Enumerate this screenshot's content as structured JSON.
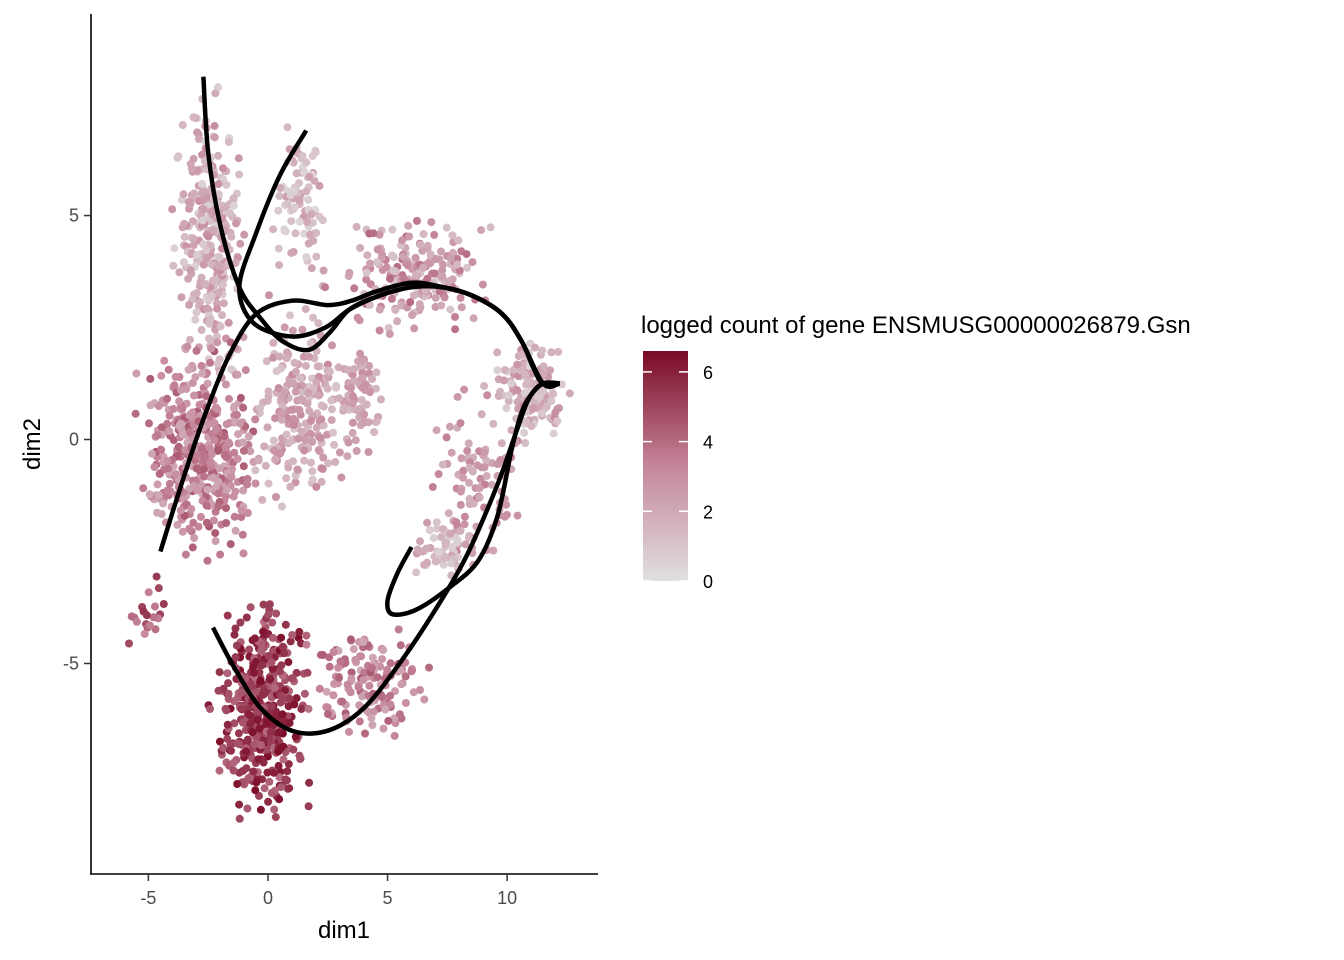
{
  "chart_data": {
    "type": "scatter",
    "title": "",
    "xlabel": "dim1",
    "ylabel": "dim2",
    "xlim": [
      -7.4,
      13.8
    ],
    "ylim": [
      -9.7,
      9.5
    ],
    "x_ticks": [
      -5,
      0,
      5,
      10
    ],
    "y_ticks": [
      -5,
      0,
      5
    ],
    "x_tick_labels": [
      "-5",
      "0",
      "5",
      "10"
    ],
    "y_tick_labels": [
      "-5",
      "0",
      "5"
    ],
    "grid": false,
    "color_scale": {
      "title": "logged count of gene ENSMUSG00000026879.Gsn",
      "min": 0,
      "max": 6.6,
      "ticks": [
        0,
        2,
        4,
        6
      ],
      "tick_labels": [
        "0",
        "2",
        "4",
        "6"
      ],
      "low_color": "#e0e0e0",
      "mid_color": "#c5869a",
      "high_color": "#7a0a26",
      "placement": "right"
    },
    "point_regions": [
      {
        "name": "upper-left arm",
        "x": [
          -4.2,
          -0.6
        ],
        "y": [
          0.5,
          8.5
        ],
        "value_range": [
          0.5,
          3.0
        ],
        "density": 900
      },
      {
        "name": "upper small arm",
        "x": [
          -0.5,
          2.8
        ],
        "y": [
          3.0,
          7.5
        ],
        "value_range": [
          0.3,
          2.5
        ],
        "density": 260
      },
      {
        "name": "left body",
        "x": [
          -6.0,
          0.2
        ],
        "y": [
          -3.0,
          2.5
        ],
        "value_range": [
          2.0,
          4.5
        ],
        "density": 1300
      },
      {
        "name": "center upper",
        "x": [
          -1.2,
          4.0
        ],
        "y": [
          -2.0,
          3.5
        ],
        "value_range": [
          1.0,
          3.2
        ],
        "density": 650
      },
      {
        "name": "branch upper right",
        "x": [
          2.0,
          10.0
        ],
        "y": [
          2.0,
          5.3
        ],
        "value_range": [
          1.0,
          4.0
        ],
        "density": 600
      },
      {
        "name": "middle finger",
        "x": [
          2.5,
          5.0
        ],
        "y": [
          -1.0,
          3.0
        ],
        "value_range": [
          1.5,
          3.0
        ],
        "density": 200
      },
      {
        "name": "right lobe",
        "x": [
          9.0,
          13.0
        ],
        "y": [
          -0.5,
          2.7
        ],
        "value_range": [
          0.5,
          3.0
        ],
        "density": 420
      },
      {
        "name": "right side branch",
        "x": [
          6.5,
          11.0
        ],
        "y": [
          -3.5,
          1.5
        ],
        "value_range": [
          1.5,
          3.5
        ],
        "density": 300
      },
      {
        "name": "right lower tail",
        "x": [
          5.5,
          9.0
        ],
        "y": [
          -3.4,
          -1.5
        ],
        "value_range": [
          0.3,
          2.5
        ],
        "density": 160
      },
      {
        "name": "lower triangle",
        "x": [
          -2.6,
          2.0
        ],
        "y": [
          -8.9,
          -3.0
        ],
        "value_range": [
          4.0,
          6.5
        ],
        "density": 1300
      },
      {
        "name": "lower connector",
        "x": [
          1.0,
          7.5
        ],
        "y": [
          -7.2,
          -3.5
        ],
        "value_range": [
          2.0,
          4.5
        ],
        "density": 420
      },
      {
        "name": "outliers",
        "x": [
          -6.3,
          -3.8
        ],
        "y": [
          -5.3,
          -2.5
        ],
        "value_range": [
          3.0,
          5.5
        ],
        "density": 60
      }
    ],
    "trajectories": [
      {
        "points": [
          [
            -2.7,
            8.1
          ],
          [
            -2.5,
            6.4
          ],
          [
            -2.0,
            4.8
          ],
          [
            -1.2,
            3.4
          ],
          [
            -0.3,
            2.7
          ],
          [
            0.6,
            2.2
          ],
          [
            1.7,
            2.0
          ],
          [
            2.6,
            2.4
          ],
          [
            3.4,
            2.9
          ],
          [
            4.6,
            3.2
          ],
          [
            6.0,
            3.4
          ],
          [
            7.3,
            3.4
          ],
          [
            8.6,
            3.2
          ],
          [
            9.8,
            2.8
          ],
          [
            10.6,
            2.2
          ],
          [
            11.1,
            1.6
          ],
          [
            11.5,
            1.25
          ],
          [
            12.2,
            1.25
          ]
        ]
      },
      {
        "points": [
          [
            1.6,
            6.9
          ],
          [
            0.5,
            5.9
          ],
          [
            -0.5,
            4.6
          ],
          [
            -1.2,
            3.4
          ],
          [
            -0.6,
            2.6
          ],
          [
            1.0,
            2.3
          ],
          [
            2.4,
            2.5
          ],
          [
            3.4,
            2.9
          ],
          [
            4.6,
            3.2
          ],
          [
            6.0,
            3.4
          ],
          [
            7.3,
            3.4
          ],
          [
            8.6,
            3.2
          ],
          [
            9.8,
            2.8
          ],
          [
            10.6,
            2.2
          ],
          [
            11.5,
            1.25
          ],
          [
            12.2,
            1.25
          ]
        ]
      },
      {
        "points": [
          [
            -4.5,
            -2.5
          ],
          [
            -3.5,
            -0.8
          ],
          [
            -2.6,
            0.6
          ],
          [
            -1.6,
            1.9
          ],
          [
            -0.5,
            2.8
          ],
          [
            1.0,
            3.1
          ],
          [
            2.5,
            3.0
          ],
          [
            3.5,
            3.1
          ],
          [
            4.5,
            3.3
          ],
          [
            6.0,
            3.5
          ],
          [
            7.3,
            3.4
          ],
          [
            8.6,
            3.2
          ],
          [
            9.8,
            2.8
          ],
          [
            10.6,
            2.2
          ],
          [
            11.5,
            1.25
          ],
          [
            12.2,
            1.25
          ]
        ]
      },
      {
        "points": [
          [
            -2.3,
            -4.2
          ],
          [
            -1.4,
            -5.1
          ],
          [
            -0.3,
            -6.0
          ],
          [
            1.0,
            -6.5
          ],
          [
            2.5,
            -6.5
          ],
          [
            4.0,
            -6.0
          ],
          [
            5.5,
            -5.0
          ],
          [
            7.0,
            -3.8
          ],
          [
            8.3,
            -2.6
          ],
          [
            9.6,
            -1.0
          ],
          [
            10.4,
            0.2
          ],
          [
            10.9,
            0.9
          ],
          [
            11.5,
            1.25
          ],
          [
            12.2,
            1.25
          ]
        ]
      },
      {
        "points": [
          [
            6.0,
            -2.4
          ],
          [
            5.4,
            -3.0
          ],
          [
            5.0,
            -3.6
          ],
          [
            5.2,
            -3.9
          ],
          [
            6.2,
            -3.8
          ],
          [
            7.6,
            -3.3
          ],
          [
            8.8,
            -2.7
          ],
          [
            9.6,
            -1.7
          ],
          [
            10.2,
            -0.2
          ],
          [
            10.6,
            0.6
          ],
          [
            11.0,
            1.0
          ],
          [
            11.5,
            1.25
          ],
          [
            12.2,
            1.25
          ]
        ]
      }
    ]
  }
}
